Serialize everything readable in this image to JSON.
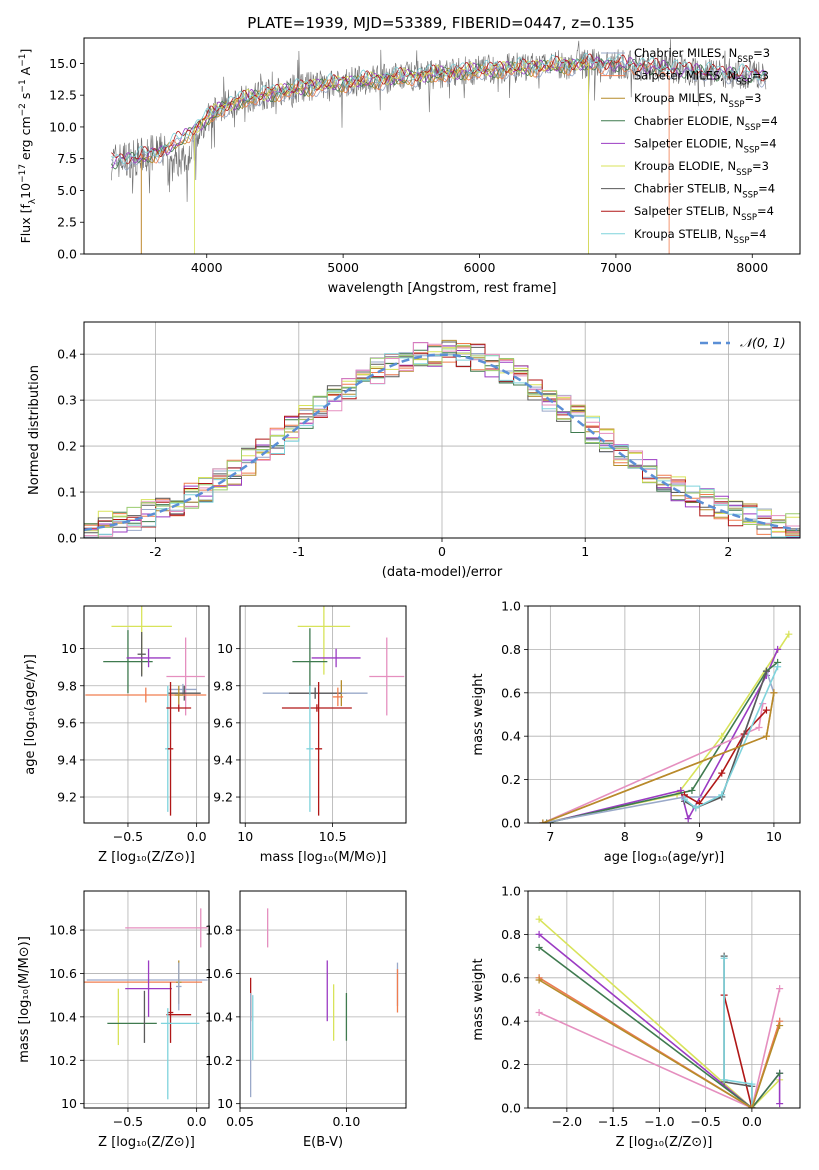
{
  "figure": {
    "title": "PLATE=1939, MJD=53389, FIBERID=0447, z=0.135",
    "colors": {
      "Chabrier MILES": "#9aa9c9",
      "Salpeter MILES": "#f07d4f",
      "Kroupa MILES": "#b58c2a",
      "Chabrier ELODIE": "#3f7a4f",
      "Salpeter ELODIE": "#9b3bc3",
      "Kroupa ELODIE": "#d8e35a",
      "Chabrier STELIB": "#5a5a5a",
      "Salpeter STELIB": "#b01717",
      "Kroupa STELIB": "#7fd3dc",
      "extra_pink": "#e58fbf",
      "extra_green": "#9acb6f",
      "normal_curve": "#5b8fd6"
    }
  },
  "chart_data": [
    {
      "id": "spectrum",
      "type": "line",
      "title": "PLATE=1939, MJD=53389, FIBERID=0447, z=0.135",
      "xlabel": "wavelength [Angstrom, rest frame]",
      "xlim": [
        3100,
        8350
      ],
      "ylim": [
        0,
        17
      ],
      "xticks": [
        4000,
        5000,
        6000,
        7000,
        8000
      ],
      "yticks": [
        0.0,
        2.5,
        5.0,
        7.5,
        10.0,
        12.5,
        15.0
      ],
      "ytick_labels": [
        "0.0",
        "2.5",
        "5.0",
        "7.5",
        "10.0",
        "12.5",
        "15.0"
      ],
      "grid": false,
      "legend_position": "right",
      "legend": [
        {
          "label": "Chabrier MILES, N",
          "sub": "SSP",
          "suffix": "=3",
          "series": "Chabrier MILES"
        },
        {
          "label": "Salpeter MILES, N",
          "sub": "SSP",
          "suffix": "=3",
          "series": "Salpeter MILES"
        },
        {
          "label": "Kroupa MILES, N",
          "sub": "SSP",
          "suffix": "=3",
          "series": "Kroupa MILES"
        },
        {
          "label": "Chabrier ELODIE, N",
          "sub": "SSP",
          "suffix": "=4",
          "series": "Chabrier ELODIE"
        },
        {
          "label": "Salpeter ELODIE, N",
          "sub": "SSP",
          "suffix": "=4",
          "series": "Salpeter ELODIE"
        },
        {
          "label": "Kroupa ELODIE, N",
          "sub": "SSP",
          "suffix": "=3",
          "series": "Kroupa ELODIE"
        },
        {
          "label": "Chabrier STELIB, N",
          "sub": "SSP",
          "suffix": "=4",
          "series": "Chabrier STELIB"
        },
        {
          "label": "Salpeter STELIB, N",
          "sub": "SSP",
          "suffix": "=4",
          "series": "Salpeter STELIB"
        },
        {
          "label": "Kroupa STELIB, N",
          "sub": "SSP",
          "suffix": "=4",
          "series": "Kroupa STELIB"
        }
      ],
      "continuum": {
        "x": [
          3300,
          3500,
          3700,
          3900,
          4100,
          4300,
          4500,
          4700,
          5000,
          5300,
          5600,
          5900,
          6200,
          6500,
          6800,
          7100,
          7400,
          7700,
          8000,
          8100
        ],
        "y": [
          7.3,
          7.6,
          8.2,
          9.8,
          11.5,
          12.3,
          12.7,
          13.1,
          13.5,
          13.8,
          14.1,
          14.4,
          14.6,
          14.8,
          15.0,
          14.9,
          14.6,
          14.3,
          14.1,
          14.0
        ]
      },
      "model_cutoffs": [
        {
          "series": "Salpeter MILES",
          "x": [
            3520,
            7390
          ],
          "drop_to": 0
        },
        {
          "series": "Kroupa ELODIE",
          "x": [
            3910,
            6800
          ],
          "drop_to": 0
        },
        {
          "series": "Kroupa MILES",
          "x": [
            3520,
            6800
          ],
          "drop_to": 0
        }
      ]
    },
    {
      "id": "residuals",
      "type": "histogram",
      "xlabel": "(data-model)/error",
      "ylabel": "Normed distribution",
      "xlim": [
        -2.5,
        2.5
      ],
      "ylim": [
        0,
        0.47
      ],
      "xticks": [
        -2,
        -1,
        0,
        1,
        2
      ],
      "yticks": [
        0.0,
        0.1,
        0.2,
        0.3,
        0.4
      ],
      "ytick_labels": [
        "0.0",
        "0.1",
        "0.2",
        "0.3",
        "0.4"
      ],
      "grid": true,
      "legend_position": "top-right",
      "normal_label": "𝒩(0, 1)",
      "normal": {
        "mean": 0,
        "sigma": 1
      }
    },
    {
      "id": "age_vs_Z",
      "type": "errorbar",
      "xlabel": "Z [log₁₀(Z/Z⊙)]",
      "ylabel": "age  [log₁₀(age/yr)]",
      "xlim": [
        -0.82,
        0.09
      ],
      "ylim": [
        9.06,
        10.23
      ],
      "xticks": [
        -0.5,
        0.0
      ],
      "xtick_labels": [
        "−0.5",
        "0.0"
      ],
      "yticks": [
        9.2,
        9.4,
        9.6,
        9.8,
        10.0
      ],
      "grid": true,
      "points": [
        {
          "series": "Kroupa ELODIE",
          "x": -0.4,
          "xerr": 0.22,
          "y": 10.12,
          "yerr": 0.26
        },
        {
          "series": "Chabrier ELODIE",
          "x": -0.5,
          "xerr": 0.18,
          "y": 9.93,
          "yerr": 0.17
        },
        {
          "series": "Chabrier STELIB",
          "x": -0.4,
          "xerr": 0.03,
          "y": 9.97,
          "yerr": 0.12
        },
        {
          "series": "Salpeter ELODIE",
          "x": -0.35,
          "xerr": 0.16,
          "y": 9.95,
          "yerr": 0.05
        },
        {
          "series": "extra_pink",
          "x": -0.08,
          "xerr": 0.14,
          "y": 9.85,
          "yerr": 0.21
        },
        {
          "series": "Chabrier MILES",
          "x": -0.1,
          "xerr": 0.1,
          "y": 9.78,
          "yerr": 0.03
        },
        {
          "series": "Chabrier STELIB",
          "x": -0.09,
          "xerr": 0.12,
          "y": 9.76,
          "yerr": 0.04
        },
        {
          "series": "Salpeter MILES",
          "x": -0.37,
          "xerr": 0.44,
          "y": 9.75,
          "yerr": 0.04
        },
        {
          "series": "Kroupa STELIB",
          "x": -0.21,
          "xerr": 0.02,
          "y": 9.46,
          "yerr": 0.34
        },
        {
          "series": "Salpeter STELIB",
          "x": -0.19,
          "xerr": 0.02,
          "y": 9.46,
          "yerr": 0.36
        },
        {
          "series": "Salpeter STELIB",
          "x": -0.13,
          "xerr": 0.09,
          "y": 9.68,
          "yerr": 0.02
        },
        {
          "series": "Kroupa MILES",
          "x": -0.13,
          "xerr": 0.03,
          "y": 9.75,
          "yerr": 0.05
        }
      ]
    },
    {
      "id": "age_vs_mass",
      "type": "errorbar",
      "xlabel": "mass [log₁₀(M/M⊙)]",
      "xlim": [
        9.97,
        10.92
      ],
      "ylim": [
        9.06,
        10.23
      ],
      "xticks": [
        10.0,
        10.5
      ],
      "yticks": [
        9.2,
        9.4,
        9.6,
        9.8,
        10.0
      ],
      "grid": true,
      "points": [
        {
          "series": "Kroupa ELODIE",
          "x": 10.45,
          "xerr": 0.15,
          "y": 10.12,
          "yerr": 0.26
        },
        {
          "series": "Chabrier ELODIE",
          "x": 10.37,
          "xerr": 0.1,
          "y": 9.93,
          "yerr": 0.18
        },
        {
          "series": "Salpeter ELODIE",
          "x": 10.52,
          "xerr": 0.14,
          "y": 9.95,
          "yerr": 0.05
        },
        {
          "series": "extra_pink",
          "x": 10.81,
          "xerr": 0.1,
          "y": 9.85,
          "yerr": 0.21
        },
        {
          "series": "Kroupa MILES",
          "x": 10.55,
          "xerr": 0.03,
          "y": 9.76,
          "yerr": 0.07
        },
        {
          "series": "Chabrier MILES",
          "x": 10.4,
          "xerr": 0.3,
          "y": 9.76,
          "yerr": 0.03
        },
        {
          "series": "Chabrier STELIB",
          "x": 10.4,
          "xerr": 0.15,
          "y": 9.76,
          "yerr": 0.03
        },
        {
          "series": "Salpeter MILES",
          "x": 10.53,
          "xerr": 0.03,
          "y": 9.74,
          "yerr": 0.05
        },
        {
          "series": "Salpeter STELIB",
          "x": 10.41,
          "xerr": 0.2,
          "y": 9.68,
          "yerr": 0.02
        },
        {
          "series": "Kroupa STELIB",
          "x": 10.37,
          "xerr": 0.02,
          "y": 9.46,
          "yerr": 0.34
        },
        {
          "series": "Salpeter STELIB",
          "x": 10.42,
          "xerr": 0.02,
          "y": 9.46,
          "yerr": 0.36
        }
      ]
    },
    {
      "id": "massweight_vs_age",
      "type": "line",
      "xlabel": "age  [log₁₀(age/yr)]",
      "ylabel": "mass weight",
      "xlim": [
        6.7,
        10.35
      ],
      "ylim": [
        0,
        1
      ],
      "xticks": [
        7,
        8,
        9,
        10
      ],
      "yticks": [
        0.0,
        0.2,
        0.4,
        0.6,
        0.8,
        1.0
      ],
      "ytick_labels": [
        "0.0",
        "0.2",
        "0.4",
        "0.6",
        "0.8",
        "1.0"
      ],
      "grid": true,
      "series": [
        {
          "name": "Kroupa ELODIE",
          "x": [
            6.9,
            8.7,
            9.3,
            10.2
          ],
          "y": [
            0.0,
            0.13,
            0.4,
            0.87
          ]
        },
        {
          "name": "Salpeter ELODIE",
          "x": [
            6.95,
            8.75,
            8.85,
            9.9,
            10.05
          ],
          "y": [
            0.0,
            0.15,
            0.02,
            0.68,
            0.8
          ]
        },
        {
          "name": "Chabrier ELODIE",
          "x": [
            6.95,
            8.9,
            9.9,
            10.05
          ],
          "y": [
            0.0,
            0.15,
            0.7,
            0.74
          ]
        },
        {
          "name": "Chabrier MILES",
          "x": [
            6.9,
            8.8,
            9.3,
            9.9,
            10.0
          ],
          "y": [
            0.0,
            0.12,
            0.12,
            0.7,
            0.6
          ]
        },
        {
          "name": "Salpeter MILES",
          "x": [
            6.9,
            9.9,
            10.0
          ],
          "y": [
            0.0,
            0.4,
            0.6
          ]
        },
        {
          "name": "extra_pink",
          "x": [
            6.9,
            9.8,
            9.85
          ],
          "y": [
            0.0,
            0.44,
            0.55
          ]
        },
        {
          "name": "Salpeter STELIB",
          "x": [
            8.8,
            9.0,
            9.3,
            9.6,
            9.9
          ],
          "y": [
            0.13,
            0.09,
            0.23,
            0.41,
            0.52
          ]
        },
        {
          "name": "Chabrier STELIB",
          "x": [
            8.8,
            8.95,
            9.3,
            9.9
          ],
          "y": [
            0.1,
            0.07,
            0.12,
            0.7
          ]
        },
        {
          "name": "Kroupa STELIB",
          "x": [
            8.8,
            8.95,
            9.3,
            10.05
          ],
          "y": [
            0.11,
            0.07,
            0.13,
            0.72
          ]
        },
        {
          "name": "Kroupa MILES",
          "x": [
            6.9,
            9.9,
            10.0
          ],
          "y": [
            0.0,
            0.4,
            0.6
          ]
        }
      ]
    },
    {
      "id": "mass_vs_Z",
      "type": "errorbar",
      "xlabel": "Z [log₁₀(Z/Z⊙)]",
      "ylabel": "mass [log₁₀(M/M⊙)]",
      "xlim": [
        -0.82,
        0.09
      ],
      "ylim": [
        9.98,
        10.98
      ],
      "xticks": [
        -0.5,
        0.0
      ],
      "xtick_labels": [
        "−0.5",
        "0.0"
      ],
      "yticks": [
        10.0,
        10.2,
        10.4,
        10.6,
        10.8
      ],
      "grid": true,
      "points": [
        {
          "series": "extra_pink",
          "x": -0.22,
          "xerr": 0.3,
          "y": 10.81,
          "yerr": 0.0
        },
        {
          "series": "extra_pink",
          "x": 0.03,
          "xerr": 0.0,
          "y": 10.81,
          "yerr": 0.09
        },
        {
          "series": "Chabrier MILES",
          "x": -0.36,
          "xerr": 0.44,
          "y": 10.57,
          "yerr": 0.0
        },
        {
          "series": "Salpeter MILES",
          "x": -0.4,
          "xerr": 0.44,
          "y": 10.56,
          "yerr": 0.0
        },
        {
          "series": "Kroupa MILES",
          "x": -0.13,
          "xerr": 0.02,
          "y": 10.56,
          "yerr": 0.1
        },
        {
          "series": "Chabrier MILES",
          "x": -0.13,
          "xerr": 0.02,
          "y": 10.54,
          "yerr": 0.11
        },
        {
          "series": "Salpeter ELODIE",
          "x": -0.35,
          "xerr": 0.17,
          "y": 10.53,
          "yerr": 0.13
        },
        {
          "series": "Kroupa ELODIE",
          "x": -0.57,
          "xerr": 0.0,
          "y": 10.4,
          "yerr": 0.13
        },
        {
          "series": "Chabrier ELODIE",
          "x": -0.47,
          "xerr": 0.18,
          "y": 10.37,
          "yerr": 0.0
        },
        {
          "series": "Chabrier STELIB",
          "x": -0.38,
          "xerr": 0.0,
          "y": 10.4,
          "yerr": 0.12
        },
        {
          "series": "Salpeter STELIB",
          "x": -0.19,
          "xerr": 0.02,
          "y": 10.42,
          "yerr": 0.14
        },
        {
          "series": "Salpeter STELIB",
          "x": -0.13,
          "xerr": 0.09,
          "y": 10.41,
          "yerr": 0.0
        },
        {
          "series": "Kroupa STELIB",
          "x": -0.12,
          "xerr": 0.14,
          "y": 10.37,
          "yerr": 0.0
        },
        {
          "series": "Kroupa STELIB",
          "x": -0.21,
          "xerr": 0.0,
          "y": 10.23,
          "yerr": 0.21
        }
      ]
    },
    {
      "id": "mass_vs_EBV",
      "type": "errorbar",
      "xlabel": "E(B-V)",
      "xlim": [
        0.05,
        0.128
      ],
      "ylim": [
        9.98,
        10.98
      ],
      "xticks": [
        0.05,
        0.1
      ],
      "xtick_labels": [
        "0.05",
        "0.10"
      ],
      "yticks": [
        10.0,
        10.2,
        10.4,
        10.6,
        10.8
      ],
      "grid": true,
      "points": [
        {
          "series": "extra_pink",
          "x": 0.063,
          "xerr": 0.0,
          "y": 10.81,
          "yerr": 0.09
        },
        {
          "series": "Salpeter STELIB",
          "x": 0.055,
          "xerr": 0.0,
          "y": 10.48,
          "yerr": 0.1
        },
        {
          "series": "Chabrier MILES",
          "x": 0.055,
          "xerr": 0.0,
          "y": 10.27,
          "yerr": 0.24
        },
        {
          "series": "Kroupa STELIB",
          "x": 0.056,
          "xerr": 0.0,
          "y": 10.35,
          "yerr": 0.15
        },
        {
          "series": "Salpeter ELODIE",
          "x": 0.091,
          "xerr": 0.0,
          "y": 10.52,
          "yerr": 0.14
        },
        {
          "series": "Kroupa ELODIE",
          "x": 0.094,
          "xerr": 0.0,
          "y": 10.42,
          "yerr": 0.13
        },
        {
          "series": "Chabrier ELODIE",
          "x": 0.1,
          "xerr": 0.0,
          "y": 10.4,
          "yerr": 0.11
        },
        {
          "series": "Chabrier MILES",
          "x": 0.124,
          "xerr": 0.0,
          "y": 10.55,
          "yerr": 0.1
        },
        {
          "series": "Salpeter MILES",
          "x": 0.124,
          "xerr": 0.0,
          "y": 10.52,
          "yerr": 0.1
        }
      ]
    },
    {
      "id": "massweight_vs_Z",
      "type": "line",
      "xlabel": "Z [log₁₀(Z/Z⊙)]",
      "ylabel": "mass weight",
      "xlim": [
        -2.42,
        0.52
      ],
      "ylim": [
        0,
        1
      ],
      "xticks": [
        -2.0,
        -1.5,
        -1.0,
        -0.5,
        0.0
      ],
      "xtick_labels": [
        "−2.0",
        "−1.5",
        "−1.0",
        "−0.5",
        "0.0"
      ],
      "yticks": [
        0.0,
        0.2,
        0.4,
        0.6,
        0.8,
        1.0
      ],
      "ytick_labels": [
        "0.0",
        "0.2",
        "0.4",
        "0.6",
        "0.8",
        "1.0"
      ],
      "grid": true,
      "series": [
        {
          "name": "Kroupa ELODIE",
          "x": [
            -2.3,
            0.0,
            0.3
          ],
          "y": [
            0.87,
            0.0,
            0.13
          ]
        },
        {
          "name": "Salpeter ELODIE",
          "x": [
            -2.3,
            0.0,
            0.3,
            0.3
          ],
          "y": [
            0.8,
            0.0,
            0.16,
            0.02
          ]
        },
        {
          "name": "Chabrier ELODIE",
          "x": [
            -2.3,
            0.0,
            0.3
          ],
          "y": [
            0.74,
            0.0,
            0.16
          ]
        },
        {
          "name": "Chabrier MILES",
          "x": [
            -2.3,
            0.0,
            0.3
          ],
          "y": [
            0.6,
            0.0,
            0.4
          ]
        },
        {
          "name": "Salpeter MILES",
          "x": [
            -2.3,
            0.0,
            0.3
          ],
          "y": [
            0.6,
            0.0,
            0.4
          ]
        },
        {
          "name": "extra_pink",
          "x": [
            -2.3,
            0.0,
            0.3
          ],
          "y": [
            0.44,
            0.0,
            0.55
          ]
        },
        {
          "name": "Salpeter STELIB",
          "x": [
            -0.3,
            0.0
          ],
          "y": [
            0.52,
            0.0
          ]
        },
        {
          "name": "Chabrier STELIB",
          "x": [
            -0.3,
            -0.3,
            0.0,
            0.0
          ],
          "y": [
            0.7,
            0.12,
            0.1,
            0.0
          ]
        },
        {
          "name": "Kroupa STELIB",
          "x": [
            -0.3,
            -0.3,
            0.0,
            0.0
          ],
          "y": [
            0.69,
            0.13,
            0.11,
            0.0
          ]
        },
        {
          "name": "Kroupa MILES",
          "x": [
            -2.3,
            0.0,
            0.3
          ],
          "y": [
            0.59,
            0.0,
            0.38
          ]
        }
      ]
    }
  ]
}
